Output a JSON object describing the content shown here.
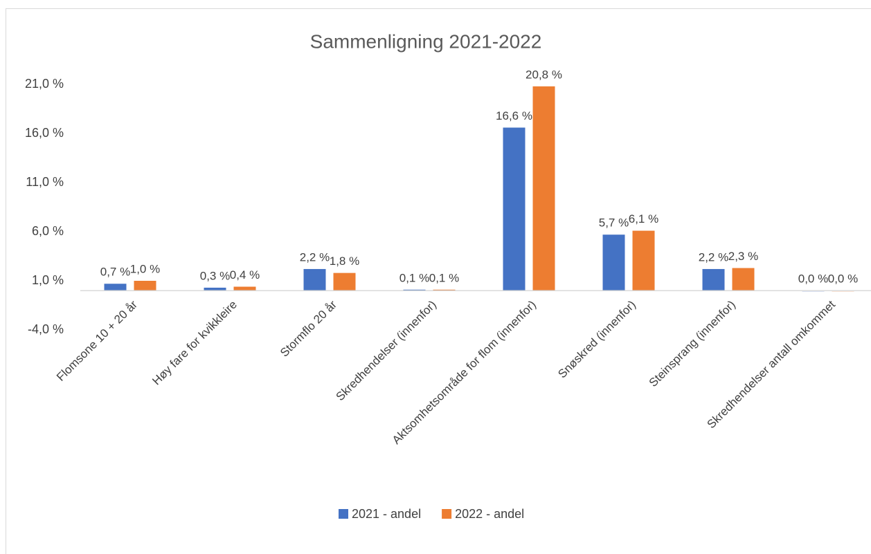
{
  "chart_data": {
    "type": "bar",
    "title": "Sammenligning 2021-2022",
    "categories": [
      "Flomsone 10 + 20 år",
      "Høy fare for kvikkleire",
      "Stormflo 20 år",
      "Skredhendelser (innenfor)",
      "Aktsomhetsområde for flom (innenfor)",
      "Snøskred (innenfor)",
      "Steinsprang (innenfor)",
      "Skredhendelser antall omkommet"
    ],
    "series": [
      {
        "name": "2021 - andel",
        "color": "#4472c4",
        "values": [
          0.7,
          0.3,
          2.2,
          0.1,
          16.6,
          5.7,
          2.2,
          0.0
        ],
        "value_labels": [
          "0,7 %",
          "0,3 %",
          "2,2 %",
          "0,1 %",
          "16,6 %",
          "5,7 %",
          "2,2 %",
          "0,0 %"
        ]
      },
      {
        "name": "2022 - andel",
        "color": "#ed7d31",
        "values": [
          1.0,
          0.4,
          1.8,
          0.1,
          20.8,
          6.1,
          2.3,
          0.0
        ],
        "value_labels": [
          "1,0 %",
          "0,4 %",
          "1,8 %",
          "0,1 %",
          "20,8 %",
          "6,1 %",
          "2,3 %",
          "0,0 %"
        ]
      }
    ],
    "ylim": [
      -4,
      21
    ],
    "yticks": [
      {
        "value": -4,
        "label": "-4,0 %"
      },
      {
        "value": 1,
        "label": "1,0 %"
      },
      {
        "value": 6,
        "label": "6,0 %"
      },
      {
        "value": 11,
        "label": "11,0 %"
      },
      {
        "value": 16,
        "label": "16,0 %"
      },
      {
        "value": 21,
        "label": "21,0 %"
      }
    ],
    "grid": false,
    "legend": "bottom"
  }
}
